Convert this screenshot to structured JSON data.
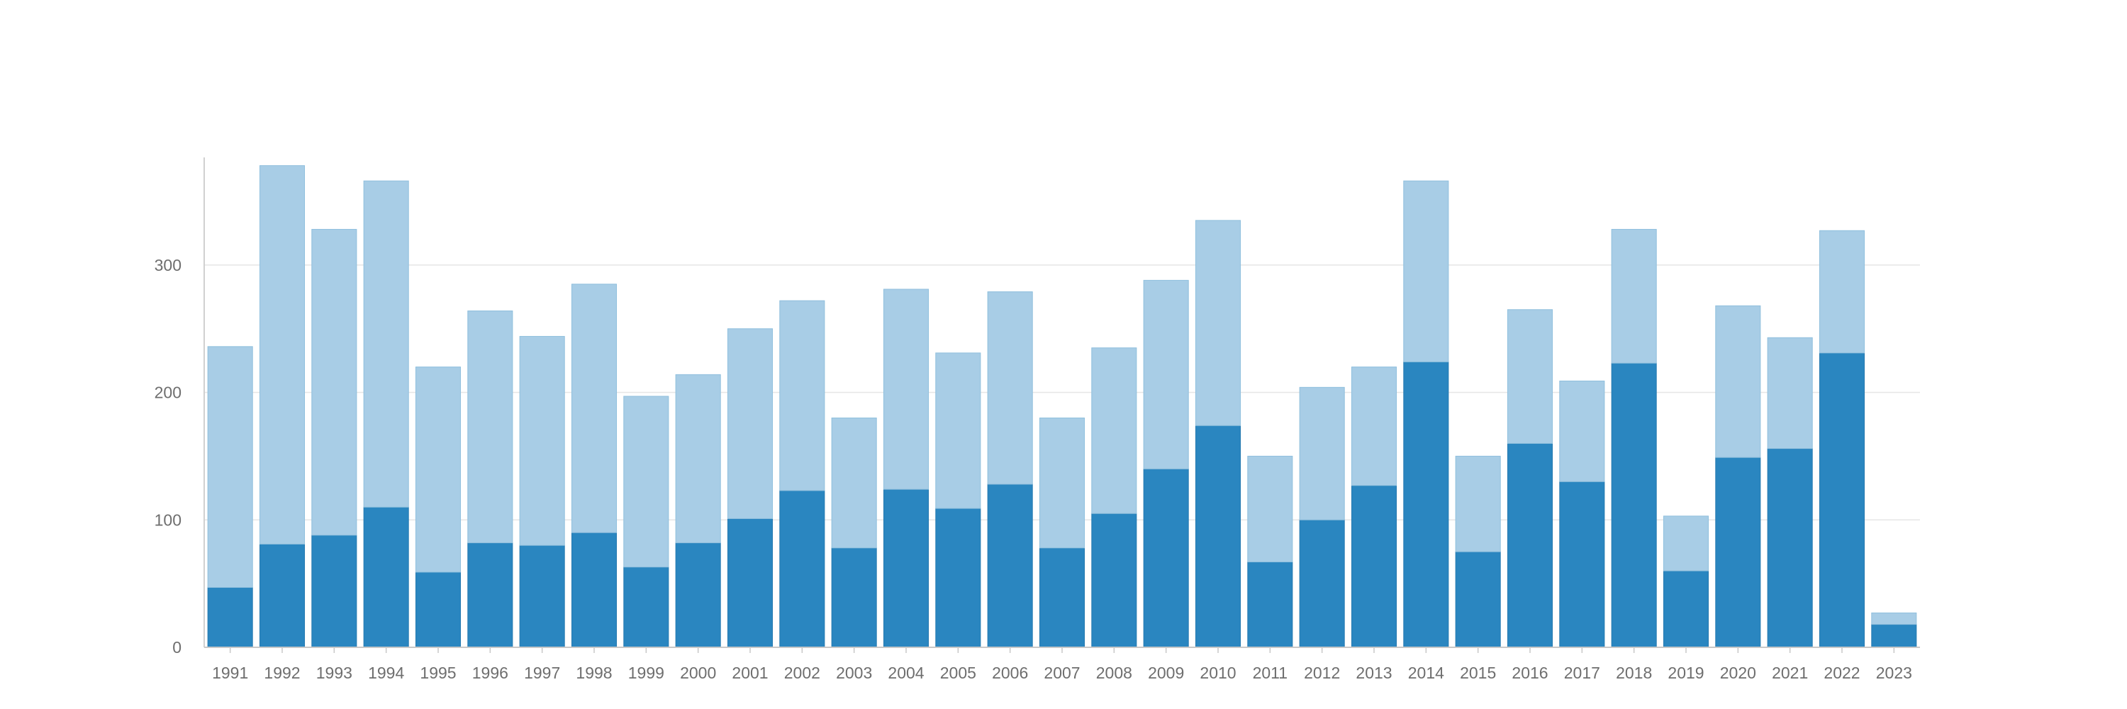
{
  "chart_data": {
    "type": "bar",
    "stacked": true,
    "title": "",
    "xlabel": "",
    "ylabel": "",
    "ylim": [
      0,
      380
    ],
    "yticks": [
      0,
      100,
      200,
      300
    ],
    "grid": true,
    "legend": "none",
    "categories": [
      "1991",
      "1992",
      "1993",
      "1994",
      "1995",
      "1996",
      "1997",
      "1998",
      "1999",
      "2000",
      "2001",
      "2002",
      "2003",
      "2004",
      "2005",
      "2006",
      "2007",
      "2008",
      "2009",
      "2010",
      "2011",
      "2012",
      "2013",
      "2014",
      "2015",
      "2016",
      "2017",
      "2018",
      "2019",
      "2020",
      "2021",
      "2022",
      "2023"
    ],
    "series": [
      {
        "color": "#2a86c0",
        "values": [
          47,
          81,
          88,
          110,
          59,
          82,
          80,
          90,
          63,
          82,
          101,
          123,
          78,
          124,
          109,
          128,
          78,
          105,
          140,
          174,
          67,
          100,
          127,
          224,
          75,
          160,
          130,
          223,
          60,
          149,
          156,
          231,
          18
        ]
      },
      {
        "color": "#a8cde6",
        "values": [
          189,
          297,
          240,
          256,
          161,
          182,
          164,
          195,
          134,
          132,
          149,
          149,
          102,
          157,
          122,
          151,
          102,
          130,
          148,
          161,
          83,
          104,
          93,
          142,
          75,
          105,
          79,
          105,
          43,
          119,
          87,
          96,
          9
        ]
      }
    ]
  }
}
